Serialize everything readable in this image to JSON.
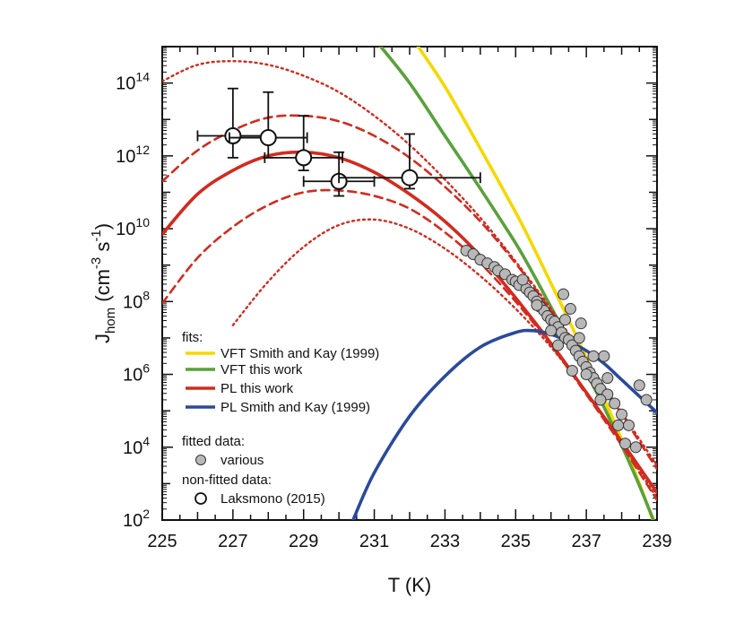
{
  "chart_data": {
    "type": "line",
    "title": "",
    "xlabel": "T (K)",
    "ylabel": "J_hom (cm^-3 s^-1)",
    "ylabel_parts": {
      "main": "J",
      "sub": "hom",
      "unit_open": "(cm",
      "exp1": "-3",
      "unit_mid": " s",
      "exp2": "-1",
      "unit_close": ")"
    },
    "xlim": [
      225,
      239
    ],
    "ylim_log10": [
      2,
      15
    ],
    "y_scale": "log",
    "x_ticks": [
      {
        "value": 225,
        "label": "225"
      },
      {
        "value": 227,
        "label": "227"
      },
      {
        "value": 229,
        "label": "229"
      },
      {
        "value": 231,
        "label": "231"
      },
      {
        "value": 233,
        "label": "233"
      },
      {
        "value": 235,
        "label": "235"
      },
      {
        "value": 237,
        "label": "237"
      },
      {
        "value": 239,
        "label": "239"
      }
    ],
    "y_ticks": [
      {
        "exp": 2,
        "base": "10",
        "sup": "2"
      },
      {
        "exp": 4,
        "base": "10",
        "sup": "4"
      },
      {
        "exp": 6,
        "base": "10",
        "sup": "6"
      },
      {
        "exp": 8,
        "base": "10",
        "sup": "8"
      },
      {
        "exp": 10,
        "base": "10",
        "sup": "10"
      },
      {
        "exp": 12,
        "base": "10",
        "sup": "12"
      },
      {
        "exp": 14,
        "base": "10",
        "sup": "14"
      }
    ],
    "legend": {
      "placement": "lower-left",
      "fits_title": "fits:",
      "lines": [
        {
          "label": "VFT Smith and Kay (1999)",
          "color": "#f5d800"
        },
        {
          "label": "VFT this work",
          "color": "#5aa13a"
        },
        {
          "label": "PL this work",
          "color": "#d22b1f"
        },
        {
          "label": "PL Smith and Kay (1999)",
          "color": "#2a4a9b"
        }
      ],
      "fitted_title": "fitted data:",
      "fitted_label": "various",
      "nonfitted_title": "non-fitted data:",
      "nonfitted_label": "Laksmono (2015)"
    },
    "series": [
      {
        "name": "VFT Smith and Kay (1999)",
        "style": "solid",
        "color": "#f5d800",
        "x": [
          232.1,
          233,
          234,
          235,
          235.5,
          236,
          236.5,
          237,
          237.5,
          238,
          238.5,
          238.9
        ],
        "log10y": [
          15.2,
          13.9,
          12.2,
          10.45,
          9.5,
          8.5,
          7.5,
          6.45,
          5.35,
          4.2,
          3.0,
          1.95
        ]
      },
      {
        "name": "VFT this work",
        "style": "solid",
        "color": "#5aa13a",
        "x": [
          231.1,
          232,
          233,
          234,
          235,
          235.5,
          236,
          236.5,
          237,
          237.5,
          238,
          238.5,
          238.9
        ],
        "log10y": [
          15.1,
          14.0,
          12.55,
          11.1,
          9.6,
          8.75,
          7.85,
          6.95,
          6.05,
          5.1,
          4.05,
          2.95,
          2.0
        ]
      },
      {
        "name": "PL this work",
        "style": "solid",
        "color": "#d22b1f",
        "x": [
          225,
          226,
          227,
          228,
          229,
          230,
          231,
          232,
          233,
          234,
          235,
          236,
          237,
          238,
          239
        ],
        "log10y": [
          9.85,
          10.95,
          11.6,
          12.0,
          12.1,
          11.95,
          11.55,
          10.95,
          10.2,
          9.25,
          8.1,
          6.85,
          5.5,
          4.15,
          2.75
        ]
      },
      {
        "name": "PL upper bound",
        "style": "dashed",
        "color": "#d22b1f",
        "x": [
          225,
          226,
          227,
          228,
          229,
          230,
          231,
          232,
          233,
          234,
          235,
          236,
          237,
          238,
          239
        ],
        "log10y": [
          11.3,
          12.15,
          12.7,
          13.05,
          13.1,
          12.95,
          12.55,
          11.95,
          11.15,
          10.2,
          9.05,
          7.75,
          6.35,
          4.9,
          3.4
        ]
      },
      {
        "name": "PL lower bound",
        "style": "dashed",
        "color": "#d22b1f",
        "x": [
          225,
          226,
          227,
          228,
          229,
          230,
          231,
          232,
          233,
          234,
          235,
          236,
          237,
          238,
          239
        ],
        "log10y": [
          7.95,
          9.2,
          10.05,
          10.65,
          11.0,
          11.05,
          10.9,
          10.55,
          9.9,
          9.05,
          8.0,
          6.8,
          5.45,
          4.05,
          2.55
        ]
      },
      {
        "name": "PL outer upper",
        "style": "dotted",
        "color": "#d22b1f",
        "x": [
          225,
          226,
          227,
          228,
          229,
          230,
          231,
          232,
          233,
          234,
          235,
          236,
          237,
          238,
          239
        ],
        "log10y": [
          14.05,
          14.5,
          14.6,
          14.5,
          14.2,
          13.75,
          13.1,
          12.3,
          11.35,
          10.3,
          9.1,
          7.8,
          6.4,
          4.95,
          3.5
        ]
      },
      {
        "name": "PL outer lower",
        "style": "dotted",
        "color": "#d22b1f",
        "x": [
          227,
          228,
          229,
          230,
          231,
          232,
          233,
          234,
          235,
          236,
          237,
          238,
          239
        ],
        "log10y": [
          7.35,
          8.55,
          9.5,
          10.1,
          10.25,
          10.0,
          9.45,
          8.7,
          7.8,
          6.75,
          5.5,
          4.1,
          2.6
        ]
      },
      {
        "name": "PL Smith and Kay (1999)",
        "style": "solid",
        "color": "#2a4a9b",
        "x": [
          230.4,
          231,
          232,
          233,
          234,
          235,
          235.5,
          236,
          236.5,
          237,
          237.5,
          238,
          238.5,
          239
        ],
        "log10y": [
          2.0,
          3.3,
          4.85,
          5.95,
          6.75,
          7.15,
          7.2,
          7.1,
          6.9,
          6.65,
          6.3,
          5.85,
          5.4,
          4.95
        ]
      }
    ],
    "laksmono_points": [
      {
        "x": 227.0,
        "log10y": 12.55,
        "xerr": 1.0,
        "logy_lo": 11.95,
        "logy_hi": 13.85
      },
      {
        "x": 228.0,
        "log10y": 12.5,
        "xerr": 1.1,
        "logy_lo": 11.95,
        "logy_hi": 13.75
      },
      {
        "x": 229.0,
        "log10y": 11.95,
        "xerr": 1.1,
        "logy_lo": 11.6,
        "logy_hi": 13.1
      },
      {
        "x": 230.0,
        "log10y": 11.3,
        "xerr": 1.0,
        "logy_lo": 10.9,
        "logy_hi": 12.1
      },
      {
        "x": 232.0,
        "log10y": 11.4,
        "xerr": 2.0,
        "logy_lo": 11.1,
        "logy_hi": 12.6
      }
    ],
    "various_points": {
      "x": [
        233.6,
        233.8,
        234.0,
        234.2,
        234.4,
        234.5,
        234.7,
        234.9,
        235.0,
        235.1,
        235.3,
        235.4,
        235.5,
        235.6,
        235.7,
        235.8,
        235.9,
        236.0,
        236.1,
        236.2,
        236.3,
        236.35,
        236.4,
        236.5,
        236.55,
        236.6,
        236.7,
        236.8,
        236.85,
        236.9,
        237.0,
        237.1,
        237.2,
        237.3,
        237.4,
        237.5,
        237.6,
        237.8,
        238.0,
        238.2,
        238.5,
        238.7,
        235.2,
        235.6,
        236.0,
        236.2,
        236.4,
        236.6,
        236.8,
        237.0,
        237.2,
        237.4,
        237.6,
        237.9,
        238.1,
        238.4
      ],
      "log10y": [
        9.4,
        9.3,
        9.15,
        9.05,
        8.95,
        8.85,
        8.75,
        8.6,
        8.55,
        8.45,
        8.35,
        8.25,
        8.15,
        8.0,
        7.85,
        7.75,
        7.6,
        7.5,
        7.45,
        7.3,
        7.15,
        8.2,
        7.0,
        6.95,
        7.8,
        6.8,
        6.65,
        6.5,
        7.4,
        6.35,
        6.2,
        6.05,
        5.9,
        5.75,
        5.6,
        6.5,
        5.45,
        5.2,
        4.9,
        4.6,
        5.7,
        5.3,
        8.6,
        7.9,
        7.2,
        6.8,
        7.5,
        6.1,
        7.0,
        6.0,
        6.5,
        5.3,
        5.9,
        4.6,
        4.1,
        4.0
      ]
    }
  }
}
